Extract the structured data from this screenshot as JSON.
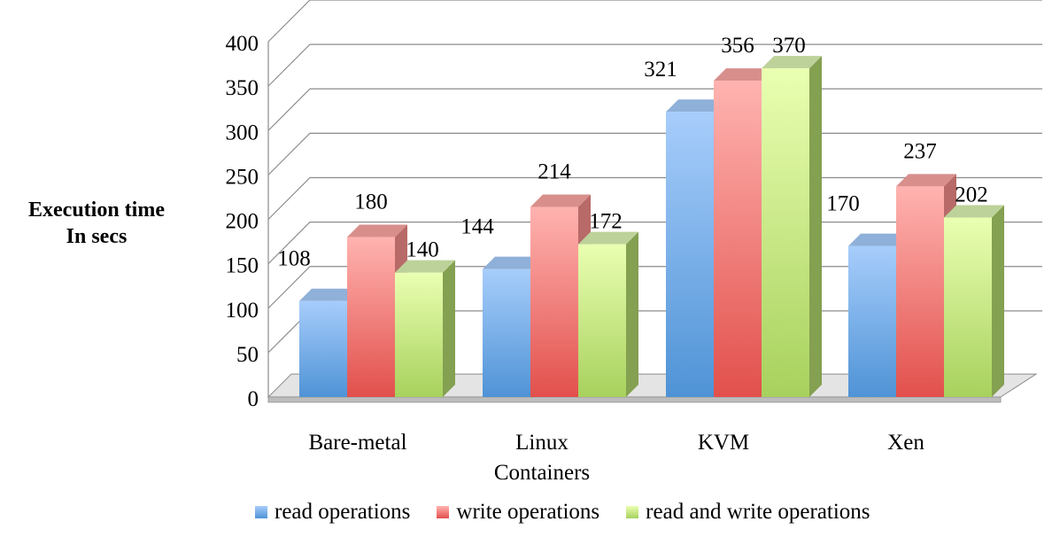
{
  "chart_data": {
    "type": "bar",
    "ylabel_lines": [
      "Execution time",
      "In secs"
    ],
    "xlabel": "",
    "ylim": [
      0,
      400
    ],
    "yticks": [
      0,
      50,
      100,
      150,
      200,
      250,
      300,
      350,
      400
    ],
    "categories": [
      [
        "Bare-metal"
      ],
      [
        "Linux",
        "Containers"
      ],
      [
        "KVM"
      ],
      [
        "Xen"
      ]
    ],
    "series": [
      {
        "name": "read operations",
        "values": [
          108,
          144,
          321,
          170
        ],
        "color": "#5b9bd5"
      },
      {
        "name": "write operations",
        "values": [
          180,
          214,
          356,
          237
        ],
        "color": "#e8534f"
      },
      {
        "name": "read and write operations",
        "values": [
          140,
          172,
          370,
          202
        ],
        "color": "#a9d05c"
      }
    ],
    "legend_position": "bottom",
    "grid": true,
    "three_d": true
  },
  "colors": {
    "read_top": "#a7cdfb",
    "read_bottom": "#4f93d6",
    "read_side": "#6f9fd6",
    "read_cap": "#8fb0d8",
    "write_top": "#ffb3b0",
    "write_bottom": "#e2504c",
    "write_side": "#b86a68",
    "write_cap": "#d88f8c",
    "rw_top": "#eaffb2",
    "rw_bottom": "#a7d15d",
    "rw_side": "#84a051",
    "rw_cap": "#bdd29a"
  }
}
